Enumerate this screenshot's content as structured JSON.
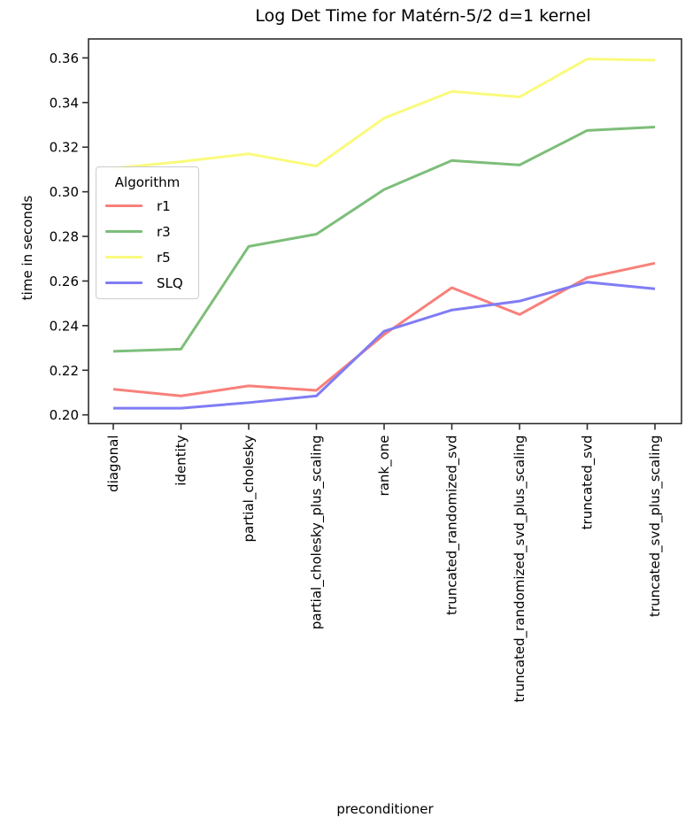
{
  "figure": {
    "title": "Log Det Time for Matérn-5/2 d=1 kernel",
    "xlabel": "preconditioner",
    "ylabel": "time in seconds"
  },
  "legend": {
    "title": "Algorithm"
  },
  "chart_data": {
    "type": "line",
    "title": "Log Det Time for Matérn-5/2 d=1 kernel",
    "xlabel": "preconditioner",
    "ylabel": "time in seconds",
    "grid": false,
    "legend_title": "Algorithm",
    "legend_position": "center left inside plot",
    "categories": [
      "diagonal",
      "identity",
      "partial_cholesky",
      "partial_cholesky_plus_scaling",
      "rank_one",
      "truncated_randomized_svd",
      "truncated_randomized_svd_plus_scaling",
      "truncated_svd",
      "truncated_svd_plus_scaling"
    ],
    "series": [
      {
        "name": "r1",
        "color": "#f8807a",
        "values": [
          0.2115,
          0.2085,
          0.213,
          0.211,
          0.236,
          0.257,
          0.245,
          0.2615,
          0.268
        ]
      },
      {
        "name": "r3",
        "color": "#7dbe7a",
        "values": [
          0.2285,
          0.2295,
          0.2755,
          0.281,
          0.301,
          0.314,
          0.312,
          0.3275,
          0.329
        ]
      },
      {
        "name": "r5",
        "color": "#fafa7d",
        "values": [
          0.3105,
          0.3135,
          0.317,
          0.3115,
          0.333,
          0.345,
          0.3425,
          0.3595,
          0.359
        ]
      },
      {
        "name": "SLQ",
        "color": "#807cf4",
        "values": [
          0.203,
          0.203,
          0.2055,
          0.2085,
          0.2375,
          0.247,
          0.251,
          0.2595,
          0.2565
        ]
      }
    ],
    "ylim": [
      0.1961,
      0.3685
    ],
    "yticks": [
      0.2,
      0.22,
      0.24,
      0.26,
      0.28,
      0.3,
      0.32,
      0.34,
      0.36
    ],
    "axis_color": "#2e2e2e"
  }
}
